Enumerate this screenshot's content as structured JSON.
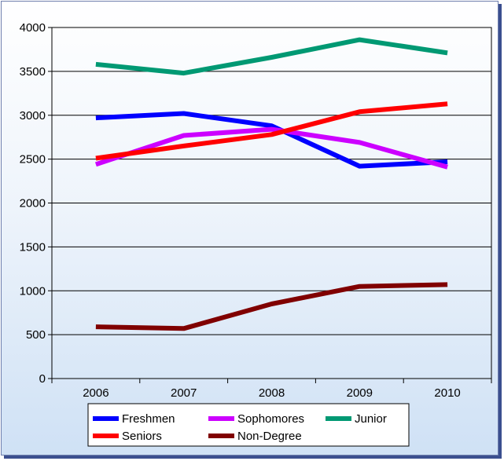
{
  "chart_data": {
    "type": "line",
    "title": "",
    "xlabel": "",
    "ylabel": "",
    "x": [
      "2006",
      "2007",
      "2008",
      "2009",
      "2010"
    ],
    "ylim": [
      0,
      4000
    ],
    "yticks": [
      0,
      500,
      1000,
      1500,
      2000,
      2500,
      3000,
      3500,
      4000
    ],
    "grid": "horizontal",
    "legend_position": "bottom",
    "series": [
      {
        "name": "Freshmen",
        "color": "#0000ff",
        "values": [
          2970,
          3020,
          2880,
          2420,
          2470
        ]
      },
      {
        "name": "Sophomores",
        "color": "#cc00ff",
        "values": [
          2440,
          2770,
          2840,
          2690,
          2410
        ]
      },
      {
        "name": "Junior",
        "color": "#009973",
        "values": [
          3580,
          3480,
          3660,
          3860,
          3710
        ]
      },
      {
        "name": "Seniors",
        "color": "#ff0000",
        "values": [
          2510,
          2650,
          2780,
          3040,
          3130
        ]
      },
      {
        "name": "Non-Degree",
        "color": "#800000",
        "values": [
          590,
          570,
          850,
          1050,
          1070
        ]
      }
    ]
  }
}
